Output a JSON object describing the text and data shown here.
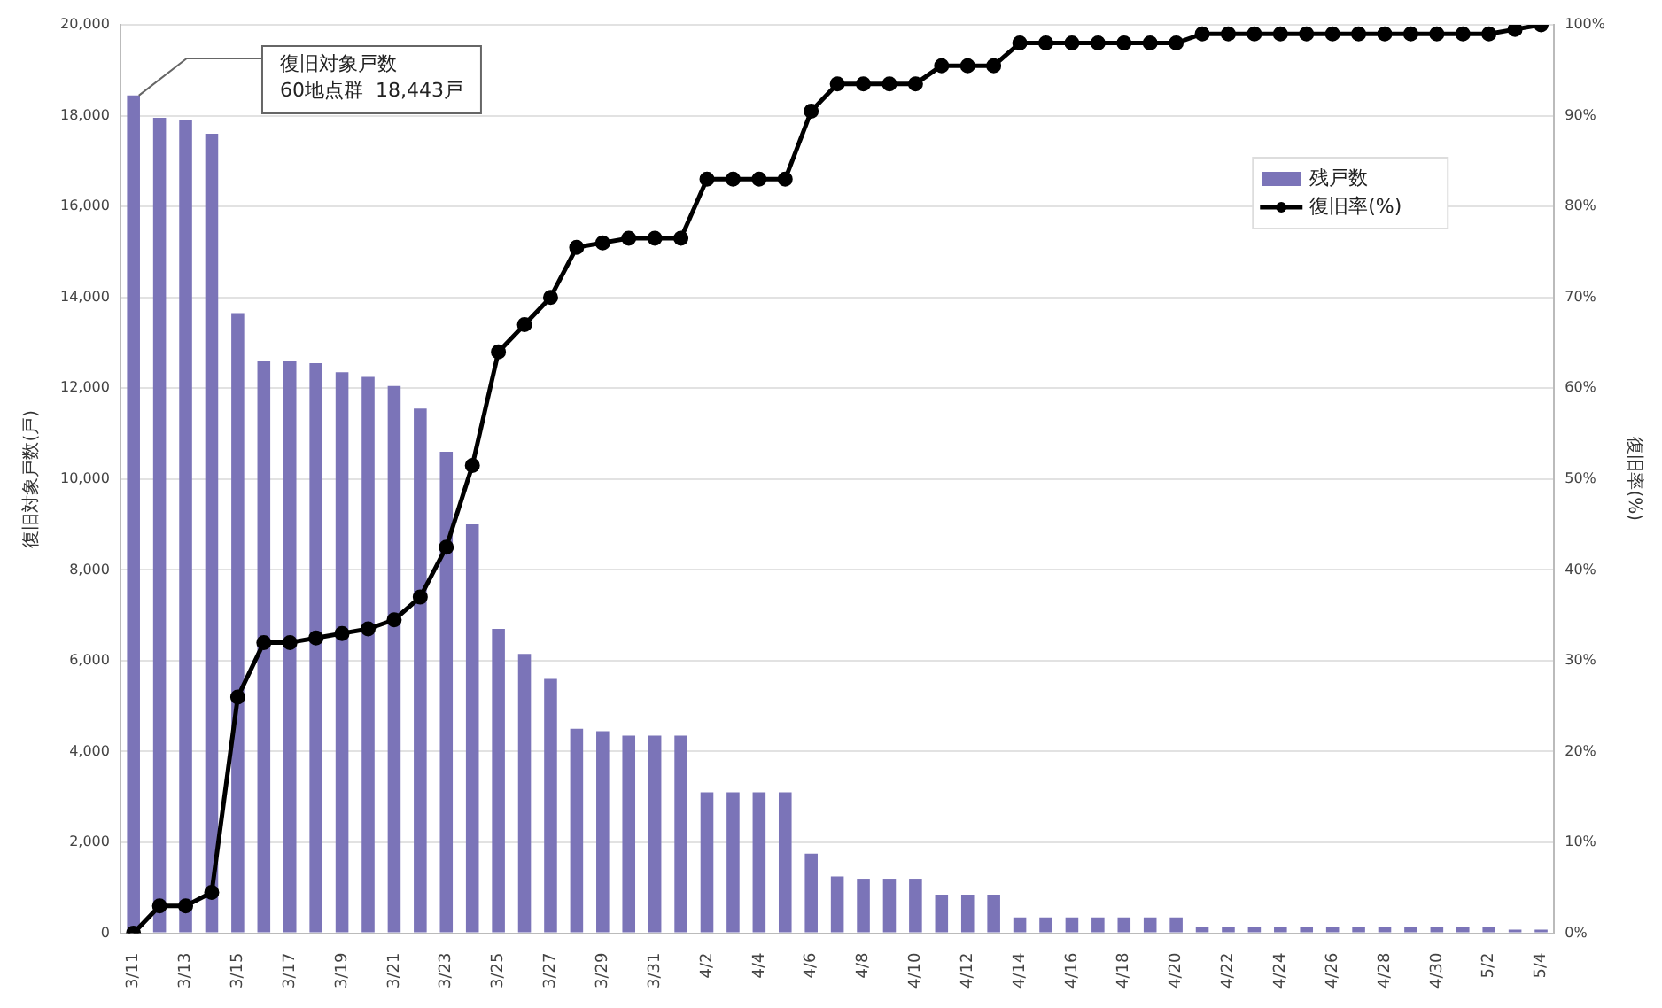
{
  "chart_data": {
    "type": "bar",
    "categories": [
      "3/11",
      null,
      "3/13",
      null,
      "3/15",
      null,
      "3/17",
      null,
      "3/19",
      null,
      "3/21",
      null,
      "3/23",
      null,
      "3/25",
      null,
      "3/27",
      null,
      "3/29",
      null,
      "3/31",
      null,
      "4/2",
      null,
      "4/4",
      null,
      "4/6",
      null,
      "4/8",
      null,
      "4/10",
      null,
      "4/12",
      null,
      "4/14",
      null,
      "4/16",
      null,
      "4/18",
      null,
      "4/20",
      null,
      "4/22",
      null,
      "4/24",
      null,
      "4/26",
      null,
      "4/28",
      null,
      "4/30",
      null,
      "5/2",
      null,
      "5/4"
    ],
    "series": [
      {
        "name": "残戸数",
        "color": "#7b74b8",
        "values": [
          18443,
          17950,
          17900,
          17600,
          13650,
          12600,
          12600,
          12550,
          12350,
          12250,
          12050,
          11550,
          10600,
          9000,
          6700,
          6150,
          5600,
          4500,
          4450,
          4350,
          4350,
          4350,
          3100,
          3100,
          3100,
          3100,
          1750,
          1250,
          1200,
          1200,
          1200,
          850,
          850,
          850,
          350,
          350,
          350,
          350,
          350,
          350,
          350,
          150,
          150,
          150,
          150,
          150,
          150,
          150,
          150,
          150,
          150,
          150,
          150,
          80,
          80
        ]
      },
      {
        "name": "復旧率(%)",
        "type": "line",
        "axis": "y2",
        "color": "#000000",
        "values": [
          0,
          3,
          3,
          4.5,
          26,
          32,
          32,
          32.5,
          33,
          33.5,
          34.5,
          37,
          42.5,
          51.5,
          64,
          67,
          70,
          75.5,
          76,
          76.5,
          76.5,
          76.5,
          83,
          83,
          83,
          83,
          90.5,
          93.5,
          93.5,
          93.5,
          93.5,
          95.5,
          95.5,
          95.5,
          98,
          98,
          98,
          98,
          98,
          98,
          98,
          99,
          99,
          99,
          99,
          99,
          99,
          99,
          99,
          99,
          99,
          99,
          99,
          99.5,
          100
        ]
      }
    ],
    "ylabel": "復旧対象戸数(戸)",
    "y2label": "復旧率(%)",
    "ylim": [
      0,
      20000
    ],
    "yticks": [
      {
        "value": 0,
        "label": "0"
      },
      {
        "value": 2000,
        "label": "2,000"
      },
      {
        "value": 4000,
        "label": "4,000"
      },
      {
        "value": 6000,
        "label": "6,000"
      },
      {
        "value": 8000,
        "label": "8,000"
      },
      {
        "value": 10000,
        "label": "10,000"
      },
      {
        "value": 12000,
        "label": "12,000"
      },
      {
        "value": 14000,
        "label": "14,000"
      },
      {
        "value": 16000,
        "label": "16,000"
      },
      {
        "value": 18000,
        "label": "18,000"
      },
      {
        "value": 20000,
        "label": "20,000"
      }
    ],
    "y2lim": [
      0,
      100
    ],
    "y2ticks": [
      {
        "value": 0,
        "label": "0%"
      },
      {
        "value": 10,
        "label": "10%"
      },
      {
        "value": 20,
        "label": "20%"
      },
      {
        "value": 30,
        "label": "30%"
      },
      {
        "value": 40,
        "label": "40%"
      },
      {
        "value": 50,
        "label": "50%"
      },
      {
        "value": 60,
        "label": "60%"
      },
      {
        "value": 70,
        "label": "70%"
      },
      {
        "value": 80,
        "label": "80%"
      },
      {
        "value": 90,
        "label": "90%"
      },
      {
        "value": 100,
        "label": "100%"
      }
    ],
    "annotations": [
      {
        "text": "復旧対象戸数\n60地点群  18,443戸",
        "x": "3/11",
        "y": 18443
      }
    ],
    "grid": "y",
    "legend": "top right",
    "marker": "circle",
    "line_style": "solid"
  }
}
